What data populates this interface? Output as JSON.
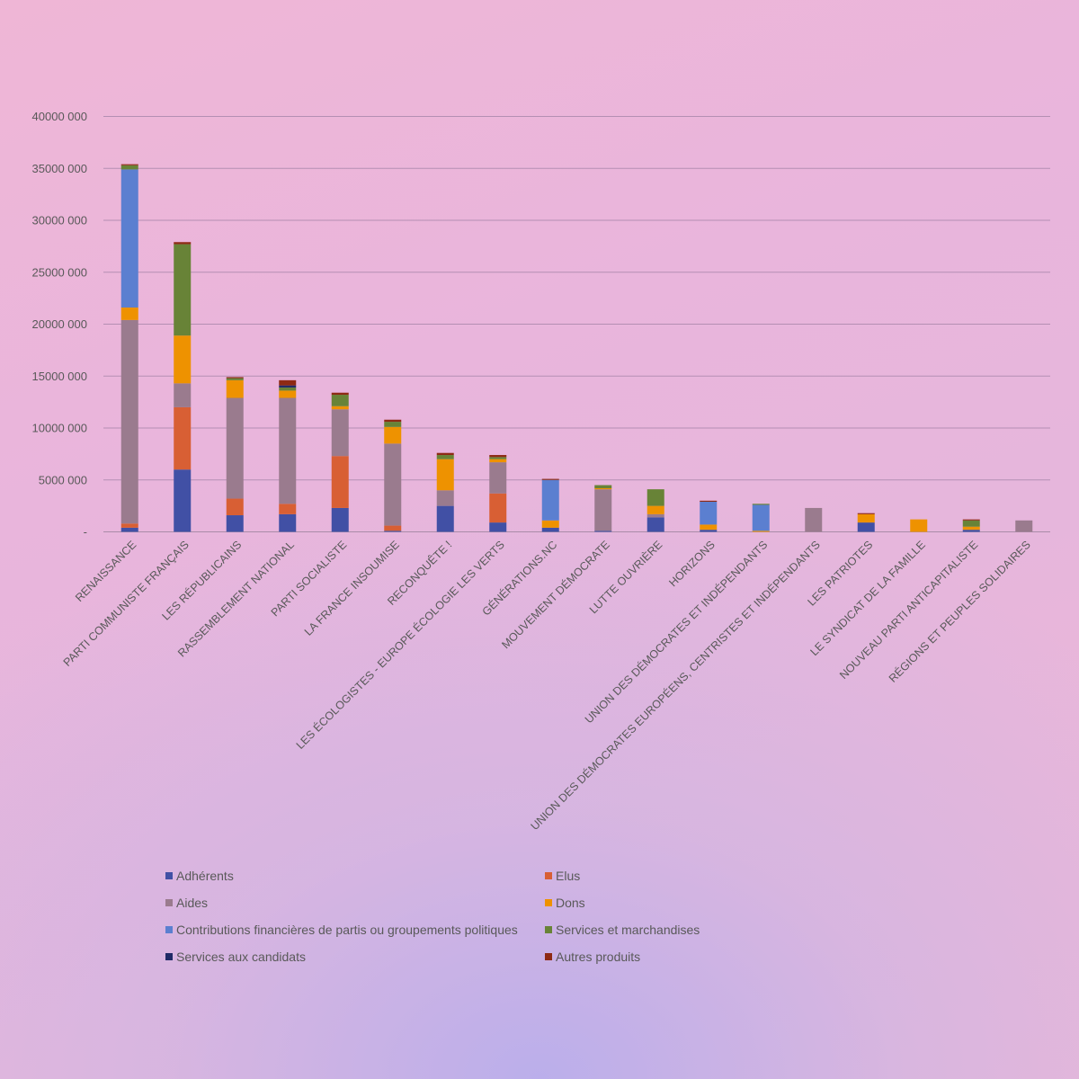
{
  "chart_data": {
    "type": "bar",
    "stacked": true,
    "title": "",
    "xlabel": "",
    "ylabel": "",
    "ylim": [
      0,
      40000000
    ],
    "yticks": [
      0,
      5000000,
      10000000,
      15000000,
      20000000,
      25000000,
      30000000,
      35000000,
      40000000
    ],
    "ytick_labels": [
      "-",
      "5000 000",
      "10000 000",
      "15000 000",
      "20000 000",
      "25000 000",
      "30000 000",
      "35000 000",
      "40000 000"
    ],
    "grid": true,
    "legend_position": "bottom",
    "categories": [
      "RENAISSANCE",
      "PARTI COMMUNISTE FRANÇAIS",
      "LES RÉPUBLICAINS",
      "RASSEMBLEMENT NATIONAL",
      "PARTI SOCIALISTE",
      "LA FRANCE INSOUMISE",
      "RECONQUÊTE !",
      "LES ÉCOLOGISTES - EUROPE ÉCOLOGIE LES VERTS",
      "GÉNÉRATIONS.NC",
      "MOUVEMENT DÉMOCRATE",
      "LUTTE OUVRIÈRE",
      "HORIZONS",
      "UNION DES DÉMOCRATES ET INDÉPENDANTS",
      "UNION DES DÉMOCRATES EUROPÉENS, CENTRISTES ET INDÉPENDANTS",
      "LES PATRIOTES",
      "LE SYNDICAT DE LA FAMILLE",
      "NOUVEAU PARTI ANTICAPITALISTE",
      "RÉGIONS ET PEUPLES SOLIDAIRES"
    ],
    "series": [
      {
        "name": "Adhérents",
        "color": "#4150a5",
        "values": [
          400000,
          6000000,
          1600000,
          1700000,
          2300000,
          100000,
          2500000,
          900000,
          400000,
          100000,
          1400000,
          200000,
          0,
          0,
          900000,
          0,
          200000,
          0
        ]
      },
      {
        "name": "Elus",
        "color": "#d85f34",
        "values": [
          400000,
          6000000,
          1600000,
          1000000,
          5000000,
          500000,
          0,
          2800000,
          0,
          0,
          0,
          0,
          0,
          0,
          0,
          0,
          0,
          0
        ]
      },
      {
        "name": "Aides",
        "color": "#9a7b8e",
        "values": [
          19600000,
          2300000,
          9700000,
          10200000,
          4500000,
          7900000,
          1500000,
          3000000,
          0,
          4000000,
          300000,
          0,
          0,
          2300000,
          0,
          0,
          0,
          1100000
        ]
      },
      {
        "name": "Dons",
        "color": "#ee9200",
        "values": [
          1200000,
          4600000,
          1700000,
          700000,
          300000,
          1600000,
          3000000,
          300000,
          700000,
          100000,
          800000,
          500000,
          100000,
          0,
          800000,
          1200000,
          300000,
          0
        ]
      },
      {
        "name": "Contributions financières de partis ou groupements politiques",
        "color": "#5b7fd0",
        "values": [
          13300000,
          0,
          0,
          0,
          0,
          0,
          0,
          0,
          3900000,
          0,
          0,
          2200000,
          2500000,
          0,
          0,
          0,
          0,
          0
        ]
      },
      {
        "name": "Services et marchandises",
        "color": "#688337",
        "values": [
          400000,
          8800000,
          200000,
          300000,
          1100000,
          500000,
          400000,
          200000,
          0,
          300000,
          1600000,
          0,
          100000,
          0,
          0,
          0,
          600000,
          0
        ]
      },
      {
        "name": "Services aux candidats",
        "color": "#1f2a66",
        "values": [
          0,
          0,
          0,
          200000,
          0,
          0,
          0,
          0,
          0,
          0,
          0,
          0,
          0,
          0,
          0,
          0,
          0,
          0
        ]
      },
      {
        "name": "Autres produits",
        "color": "#8e2a14",
        "values": [
          100000,
          200000,
          100000,
          500000,
          200000,
          200000,
          200000,
          200000,
          100000,
          0,
          0,
          100000,
          0,
          0,
          100000,
          0,
          100000,
          0
        ]
      }
    ]
  }
}
